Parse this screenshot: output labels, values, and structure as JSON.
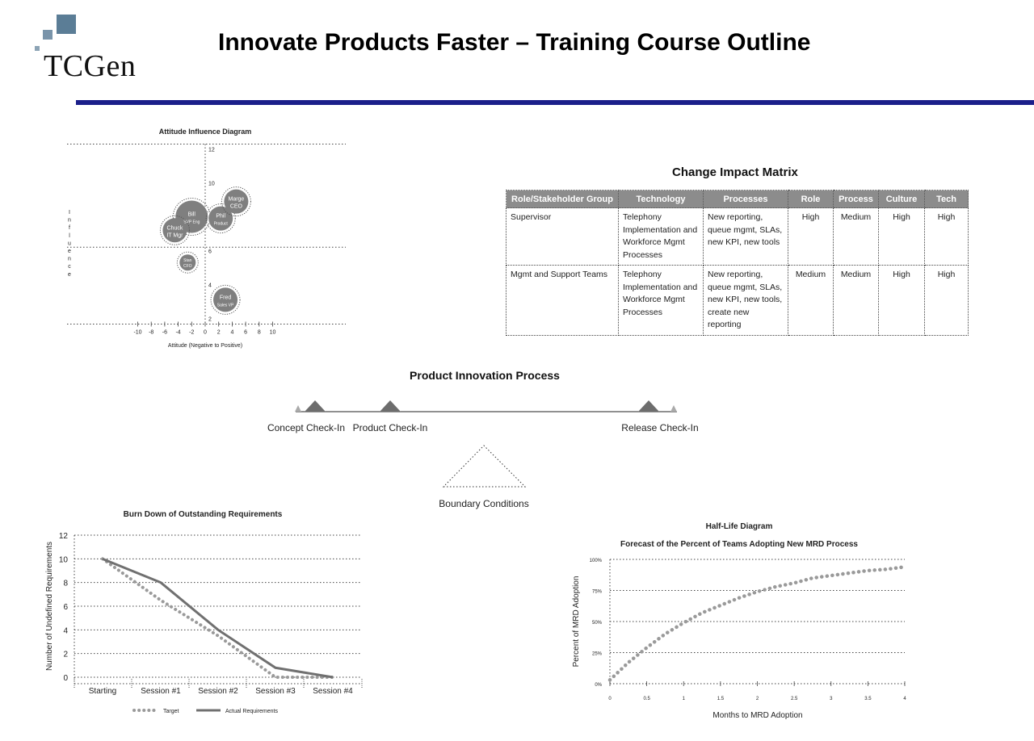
{
  "header": {
    "logo_text": "TCGen",
    "title": "Innovate Products Faster – Training Course Outline"
  },
  "attitude_diagram": {
    "title": "Attitude Influence Diagram",
    "xlabel": "Attitude (Negative to Positive)",
    "ylabel": "Influence",
    "x_ticks": [
      "-10",
      "-8",
      "-6",
      "-4",
      "-2",
      "0",
      "2",
      "4",
      "6",
      "8",
      "10"
    ],
    "y_ticks": [
      "2",
      "4",
      "6",
      "8",
      "10",
      "12"
    ],
    "bubbles": [
      {
        "line1": "Bill",
        "line2": "SVP Eng",
        "x": -2.0,
        "y": 8.0,
        "size": "large"
      },
      {
        "line1": "Chuck",
        "line2": "IT Mgr",
        "x": -4.5,
        "y": 7.2,
        "size": "medium"
      },
      {
        "line1": "Phil",
        "line2": "Product",
        "x": 2.3,
        "y": 7.9,
        "size": "medium"
      },
      {
        "line1": "Marge",
        "line2": "CEO",
        "x": 4.6,
        "y": 8.9,
        "size": "medium"
      },
      {
        "line1": "Stan",
        "line2": "CFO",
        "x": -2.6,
        "y": 5.3,
        "size": "small"
      },
      {
        "line1": "Fred",
        "line2": "Sales VP",
        "x": 3.0,
        "y": 3.1,
        "size": "medium"
      }
    ]
  },
  "change_matrix": {
    "title": "Change Impact Matrix",
    "headers": [
      "Role/Stakeholder Group",
      "Technology",
      "Processes",
      "Role",
      "Process",
      "Culture",
      "Tech"
    ],
    "rows": [
      {
        "group": "Supervisor",
        "technology": "Telephony Implementation and Workforce Mgmt Processes",
        "processes": "New reporting, queue mgmt, SLAs, new KPI, new tools",
        "role": "High",
        "process": "Medium",
        "culture": "High",
        "tech": "High"
      },
      {
        "group": "Mgmt and Support Teams",
        "technology": "Telephony Implementation and Workforce Mgmt Processes",
        "processes": "New reporting, queue mgmt, SLAs, new KPI, new tools, create new reporting",
        "role": "Medium",
        "process": "Medium",
        "culture": "High",
        "tech": "High"
      }
    ]
  },
  "innovation_process": {
    "title": "Product Innovation Process",
    "checkpoints": [
      "Concept Check-In",
      "Product Check-In",
      "Release Check-In"
    ],
    "boundary_label": "Boundary Conditions"
  },
  "chart_data": [
    {
      "type": "line",
      "title": "Burn Down of Outstanding Requirements",
      "xlabel": "",
      "ylabel": "Number of Undefined Requirements",
      "categories": [
        "Starting",
        "Session #1",
        "Session #2",
        "Session #3",
        "Session #4"
      ],
      "ylim": [
        0,
        12
      ],
      "y_ticks": [
        "0",
        "2",
        "4",
        "6",
        "8",
        "10",
        "12"
      ],
      "grid": true,
      "legend": "bottom",
      "series": [
        {
          "name": "Target",
          "style": "dotted",
          "color": "#9a9a9a",
          "values": [
            10,
            6.5,
            3.5,
            0,
            0
          ]
        },
        {
          "name": "Actual Requirements",
          "style": "solid",
          "color": "#707070",
          "values": [
            10,
            8,
            4,
            0.8,
            0
          ]
        }
      ]
    },
    {
      "type": "line",
      "title": "Half-Life Diagram",
      "subtitle": "Forecast of the Percent of Teams Adopting New MRD Process",
      "xlabel": "Months to MRD Adoption",
      "ylabel": "Percent of MRD Adoption",
      "x_ticks": [
        "0",
        "0.5",
        "1",
        "1.5",
        "2",
        "2.5",
        "3",
        "3.5",
        "4"
      ],
      "y_ticks": [
        "0%",
        "25%",
        "50%",
        "75%",
        "100%"
      ],
      "xlim": [
        0,
        4
      ],
      "ylim": [
        0,
        100
      ],
      "grid": true,
      "series": [
        {
          "style": "dotted",
          "color": "#9a9a9a",
          "x": [
            0,
            0.25,
            0.5,
            0.75,
            1,
            1.25,
            1.5,
            1.75,
            2,
            2.25,
            2.5,
            2.75,
            3,
            3.25,
            3.5,
            3.75,
            4
          ],
          "values": [
            3,
            17,
            29,
            40,
            49,
            57,
            63,
            69,
            74,
            78,
            81,
            85,
            87,
            89,
            91,
            92,
            94
          ]
        }
      ]
    }
  ]
}
